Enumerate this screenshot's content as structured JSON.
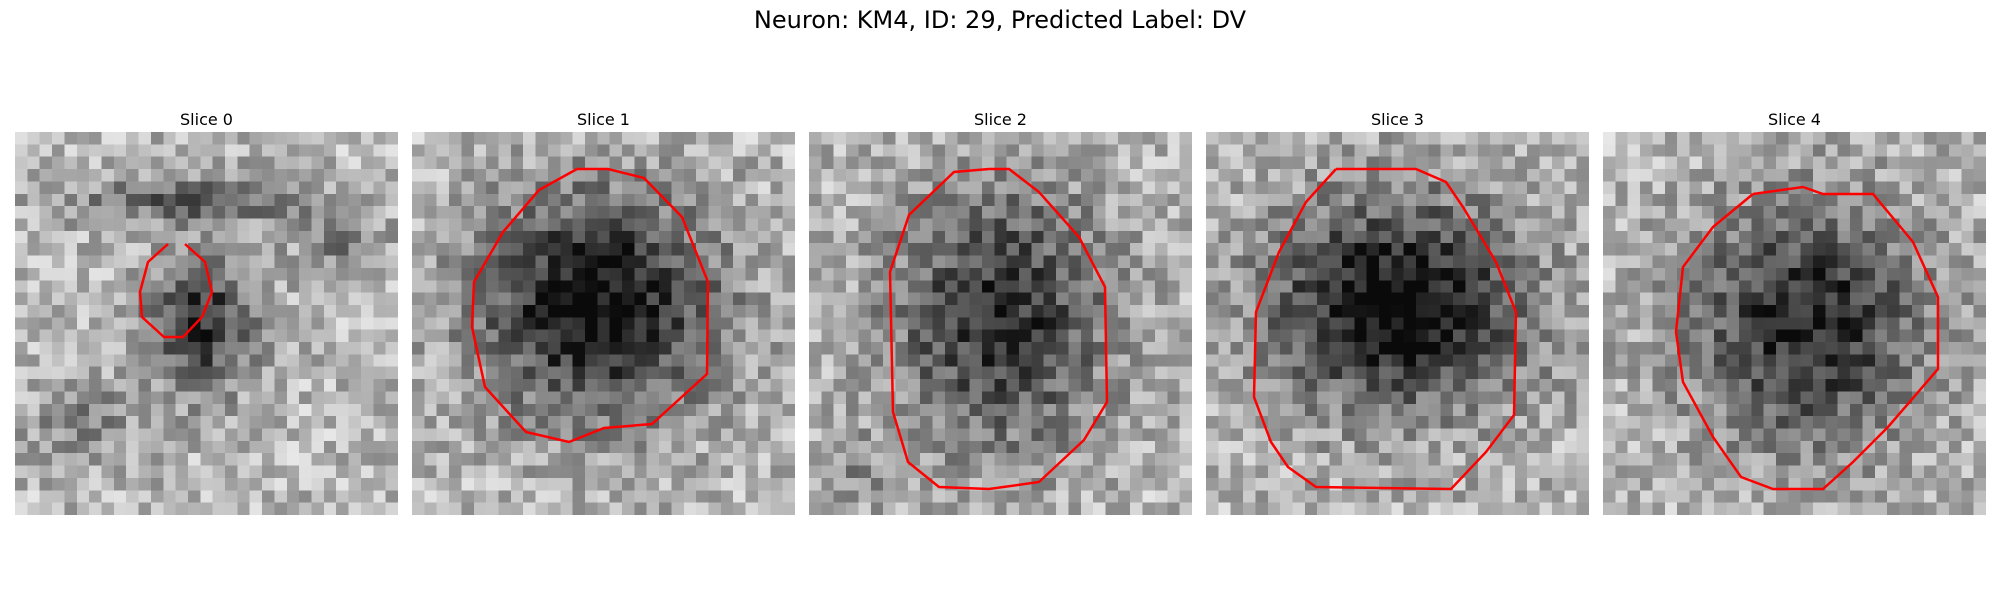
{
  "figure": {
    "title": "Neuron: KM4, ID: 29, Predicted Label: DV"
  },
  "colors": {
    "contour": "#ff0000",
    "background": "#ffffff"
  },
  "panels": [
    {
      "title": "Slice 0"
    },
    {
      "title": "Slice 1"
    },
    {
      "title": "Slice 2"
    },
    {
      "title": "Slice 3"
    },
    {
      "title": "Slice 4"
    }
  ]
}
